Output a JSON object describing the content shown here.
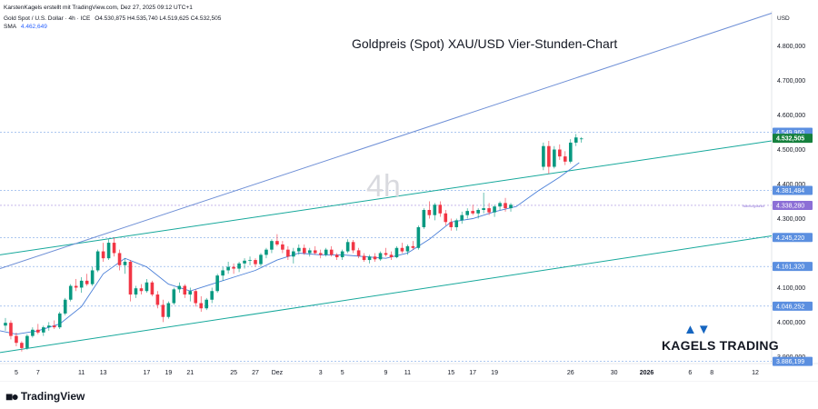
{
  "header": {
    "credit": "KarstenKagels erstellt mit TradingView.com, Dez 27, 2025 09:12 UTC+1",
    "symbol": "Gold Spot / U.S. Dollar · 4h · ICE",
    "ohlc": "O4.530,875 H4.535,740 L4.519,625 C4.532,505",
    "sma_label": "SMA",
    "sma_value": "4.462,649"
  },
  "chart_title": "Goldpreis (Spot) XAU/USD Vier-Stunden-Chart",
  "watermark": "4h",
  "currency_label": "USD",
  "brand": {
    "name": "KAGELS TRADING",
    "icon": "bull-bear-icon"
  },
  "footer": {
    "logo_text": "TradingView",
    "logo_icon": "tradingview-logo-icon"
  },
  "colors": {
    "up": "#089981",
    "down": "#f23645",
    "sma": "#4a7fd8",
    "channel": "#16a89b",
    "upper_line": "#6e8fd6",
    "price_tag": "#15803d",
    "level_tag": "#5b8fe0",
    "alert_tag": "#8c6fd6"
  },
  "chart_data": {
    "type": "candlestick",
    "title": "Goldpreis (Spot) XAU/USD Vier-Stunden-Chart",
    "timeframe": "4h",
    "ylim": [
      3880,
      4920
    ],
    "y_ticks": [
      {
        "value": 4800,
        "label": "4.800,000"
      },
      {
        "value": 4700,
        "label": "4.700,000"
      },
      {
        "value": 4600,
        "label": "4.600,000"
      },
      {
        "value": 4500,
        "label": "4.500,000"
      },
      {
        "value": 4400,
        "label": "4.400,000"
      },
      {
        "value": 4300,
        "label": "4.300,000"
      },
      {
        "value": 4100,
        "label": "4.100,000"
      },
      {
        "value": 4000,
        "label": "4.000,000"
      },
      {
        "value": 3900,
        "label": "3.900,000"
      }
    ],
    "x_ticks": [
      {
        "label": "5",
        "day": 5
      },
      {
        "label": "7",
        "day": 7
      },
      {
        "label": "11",
        "day": 11
      },
      {
        "label": "13",
        "day": 13
      },
      {
        "label": "17",
        "day": 17
      },
      {
        "label": "19",
        "day": 19
      },
      {
        "label": "21",
        "day": 21
      },
      {
        "label": "25",
        "day": 25
      },
      {
        "label": "27",
        "day": 27
      },
      {
        "label": "Dez",
        "day": 29
      },
      {
        "label": "3",
        "day": 33
      },
      {
        "label": "5",
        "day": 35
      },
      {
        "label": "9",
        "day": 39
      },
      {
        "label": "11",
        "day": 41
      },
      {
        "label": "15",
        "day": 45
      },
      {
        "label": "17",
        "day": 47
      },
      {
        "label": "19",
        "day": 49
      },
      {
        "label": "26",
        "day": 56
      },
      {
        "label": "30",
        "day": 60
      },
      {
        "label": "2026",
        "day": 63
      },
      {
        "label": "6",
        "day": 67
      },
      {
        "label": "8",
        "day": 69
      },
      {
        "label": "12",
        "day": 73
      }
    ],
    "price_levels": [
      {
        "value": 4549.96,
        "label": "4.549,960",
        "kind": "level"
      },
      {
        "value": 4532.505,
        "label": "4.532,505",
        "kind": "current"
      },
      {
        "value": 4381.484,
        "label": "4.381,484",
        "kind": "level"
      },
      {
        "value": 4338.28,
        "label": "4.338,280",
        "kind": "alert",
        "note": "Warnungsstrich"
      },
      {
        "value": 4245.22,
        "label": "4.245,220",
        "kind": "level"
      },
      {
        "value": 4161.32,
        "label": "4.161,320",
        "kind": "level"
      },
      {
        "value": 4046.252,
        "label": "4.046,252",
        "kind": "level"
      },
      {
        "value": 3886.199,
        "label": "3.886,199",
        "kind": "level"
      }
    ],
    "trend_lines": [
      {
        "name": "channel-upper",
        "from": {
          "day": 3.5,
          "price": 4195
        },
        "to": {
          "day": 74.5,
          "price": 4525
        }
      },
      {
        "name": "channel-lower",
        "from": {
          "day": 3.5,
          "price": 3912
        },
        "to": {
          "day": 74.5,
          "price": 4250
        }
      },
      {
        "name": "upper-line",
        "from": {
          "day": 3.5,
          "price": 4155
        },
        "to": {
          "day": 74.5,
          "price": 4895
        }
      }
    ],
    "sma_path": [
      [
        3.5,
        3975
      ],
      [
        5,
        3965
      ],
      [
        7,
        3975
      ],
      [
        9,
        3995
      ],
      [
        11,
        4045
      ],
      [
        13,
        4140
      ],
      [
        15,
        4185
      ],
      [
        17,
        4160
      ],
      [
        19,
        4110
      ],
      [
        21,
        4090
      ],
      [
        23,
        4110
      ],
      [
        25,
        4130
      ],
      [
        27,
        4150
      ],
      [
        29,
        4180
      ],
      [
        31,
        4200
      ],
      [
        33,
        4195
      ],
      [
        35,
        4195
      ],
      [
        37,
        4190
      ],
      [
        39,
        4185
      ],
      [
        41,
        4200
      ],
      [
        43,
        4240
      ],
      [
        45,
        4290
      ],
      [
        47,
        4300
      ],
      [
        49,
        4320
      ],
      [
        51,
        4335
      ],
      [
        53,
        4380
      ],
      [
        55,
        4420
      ],
      [
        56.8,
        4462
      ]
    ],
    "candles": [
      [
        4.0,
        3990,
        4012,
        3975,
        3998
      ],
      [
        4.5,
        3998,
        4005,
        3950,
        3960
      ],
      [
        5.0,
        3960,
        3970,
        3930,
        3940
      ],
      [
        5.5,
        3940,
        3945,
        3915,
        3925
      ],
      [
        6.0,
        3925,
        3965,
        3920,
        3960
      ],
      [
        6.5,
        3960,
        3985,
        3955,
        3978
      ],
      [
        7.0,
        3978,
        3995,
        3965,
        3970
      ],
      [
        7.5,
        3970,
        3990,
        3960,
        3985
      ],
      [
        8.0,
        3985,
        4000,
        3975,
        3990
      ],
      [
        8.5,
        3990,
        4005,
        3980,
        3985
      ],
      [
        9.0,
        3985,
        4030,
        3980,
        4025
      ],
      [
        9.5,
        4025,
        4070,
        4020,
        4065
      ],
      [
        10.0,
        4065,
        4110,
        4060,
        4105
      ],
      [
        10.5,
        4105,
        4125,
        4090,
        4100
      ],
      [
        11.0,
        4100,
        4130,
        4085,
        4120
      ],
      [
        11.5,
        4120,
        4140,
        4105,
        4110
      ],
      [
        12.0,
        4110,
        4160,
        4105,
        4150
      ],
      [
        12.5,
        4150,
        4210,
        4145,
        4205
      ],
      [
        13.0,
        4205,
        4230,
        4175,
        4185
      ],
      [
        13.5,
        4185,
        4240,
        4180,
        4230
      ],
      [
        14.0,
        4230,
        4245,
        4190,
        4200
      ],
      [
        14.5,
        4200,
        4210,
        4150,
        4165
      ],
      [
        15.0,
        4165,
        4185,
        4140,
        4175
      ],
      [
        15.5,
        4175,
        4180,
        4060,
        4080
      ],
      [
        16.0,
        4080,
        4105,
        4070,
        4098
      ],
      [
        16.5,
        4098,
        4110,
        4080,
        4090
      ],
      [
        17.0,
        4090,
        4125,
        4085,
        4115
      ],
      [
        17.5,
        4115,
        4120,
        4075,
        4080
      ],
      [
        18.0,
        4080,
        4090,
        4040,
        4050
      ],
      [
        18.5,
        4050,
        4065,
        4000,
        4015
      ],
      [
        19.0,
        4015,
        4060,
        4010,
        4055
      ],
      [
        19.5,
        4055,
        4100,
        4050,
        4095
      ],
      [
        20.0,
        4095,
        4115,
        4085,
        4105
      ],
      [
        20.5,
        4105,
        4110,
        4070,
        4080
      ],
      [
        21.0,
        4080,
        4100,
        4060,
        4090
      ],
      [
        21.5,
        4090,
        4095,
        4045,
        4055
      ],
      [
        22.0,
        4055,
        4075,
        4030,
        4040
      ],
      [
        22.5,
        4040,
        4070,
        4035,
        4065
      ],
      [
        23.0,
        4065,
        4100,
        4055,
        4090
      ],
      [
        23.5,
        4090,
        4140,
        4085,
        4135
      ],
      [
        24.0,
        4135,
        4160,
        4120,
        4150
      ],
      [
        24.5,
        4150,
        4175,
        4140,
        4160
      ],
      [
        25.0,
        4160,
        4170,
        4140,
        4155
      ],
      [
        25.5,
        4155,
        4175,
        4145,
        4170
      ],
      [
        26.0,
        4170,
        4185,
        4155,
        4178
      ],
      [
        26.5,
        4178,
        4190,
        4165,
        4180
      ],
      [
        27.0,
        4180,
        4185,
        4160,
        4168
      ],
      [
        27.5,
        4168,
        4200,
        4160,
        4195
      ],
      [
        28.0,
        4195,
        4215,
        4185,
        4210
      ],
      [
        28.5,
        4210,
        4240,
        4200,
        4235
      ],
      [
        29.0,
        4235,
        4255,
        4220,
        4225
      ],
      [
        29.5,
        4225,
        4235,
        4200,
        4210
      ],
      [
        30.0,
        4210,
        4220,
        4180,
        4190
      ],
      [
        30.5,
        4190,
        4215,
        4170,
        4205
      ],
      [
        31.0,
        4205,
        4225,
        4195,
        4215
      ],
      [
        31.5,
        4215,
        4225,
        4195,
        4200
      ],
      [
        32.0,
        4200,
        4215,
        4190,
        4208
      ],
      [
        32.5,
        4208,
        4220,
        4195,
        4200
      ],
      [
        33.0,
        4200,
        4210,
        4185,
        4195
      ],
      [
        33.5,
        4195,
        4215,
        4190,
        4210
      ],
      [
        34.0,
        4210,
        4220,
        4190,
        4195
      ],
      [
        34.5,
        4195,
        4200,
        4180,
        4188
      ],
      [
        35.0,
        4188,
        4210,
        4180,
        4205
      ],
      [
        35.5,
        4205,
        4240,
        4200,
        4232
      ],
      [
        36.0,
        4232,
        4238,
        4200,
        4208
      ],
      [
        36.5,
        4208,
        4215,
        4185,
        4192
      ],
      [
        37.0,
        4192,
        4200,
        4175,
        4180
      ],
      [
        37.5,
        4180,
        4195,
        4170,
        4190
      ],
      [
        38.0,
        4190,
        4200,
        4175,
        4182
      ],
      [
        38.5,
        4182,
        4205,
        4178,
        4200
      ],
      [
        39.0,
        4200,
        4215,
        4190,
        4195
      ],
      [
        39.5,
        4195,
        4205,
        4180,
        4188
      ],
      [
        40.0,
        4188,
        4220,
        4185,
        4215
      ],
      [
        40.5,
        4215,
        4230,
        4200,
        4205
      ],
      [
        41.0,
        4205,
        4225,
        4195,
        4220
      ],
      [
        41.5,
        4220,
        4235,
        4210,
        4215
      ],
      [
        42.0,
        4215,
        4280,
        4210,
        4275
      ],
      [
        42.5,
        4275,
        4330,
        4270,
        4325
      ],
      [
        43.0,
        4325,
        4350,
        4300,
        4310
      ],
      [
        43.5,
        4310,
        4345,
        4295,
        4340
      ],
      [
        44.0,
        4340,
        4350,
        4305,
        4315
      ],
      [
        44.5,
        4315,
        4325,
        4280,
        4290
      ],
      [
        45.0,
        4290,
        4300,
        4265,
        4275
      ],
      [
        45.5,
        4275,
        4300,
        4265,
        4295
      ],
      [
        46.0,
        4295,
        4320,
        4285,
        4310
      ],
      [
        46.5,
        4310,
        4330,
        4300,
        4322
      ],
      [
        47.0,
        4322,
        4340,
        4310,
        4315
      ],
      [
        47.5,
        4315,
        4330,
        4300,
        4325
      ],
      [
        48.0,
        4325,
        4375,
        4315,
        4330
      ],
      [
        48.5,
        4330,
        4345,
        4310,
        4318
      ],
      [
        49.0,
        4318,
        4340,
        4305,
        4335
      ],
      [
        49.5,
        4335,
        4350,
        4325,
        4345
      ],
      [
        50.0,
        4345,
        4360,
        4320,
        4330
      ],
      [
        50.5,
        4330,
        4345,
        4320,
        4340
      ],
      [
        53.5,
        4450,
        4520,
        4440,
        4510
      ],
      [
        54.0,
        4510,
        4525,
        4430,
        4450
      ],
      [
        54.5,
        4450,
        4510,
        4445,
        4500
      ],
      [
        55.0,
        4500,
        4515,
        4470,
        4480
      ],
      [
        55.5,
        4480,
        4495,
        4455,
        4465
      ],
      [
        56.0,
        4465,
        4530,
        4460,
        4520
      ],
      [
        56.5,
        4520,
        4545,
        4510,
        4535
      ],
      [
        57.0,
        4530,
        4536,
        4520,
        4532
      ]
    ]
  }
}
